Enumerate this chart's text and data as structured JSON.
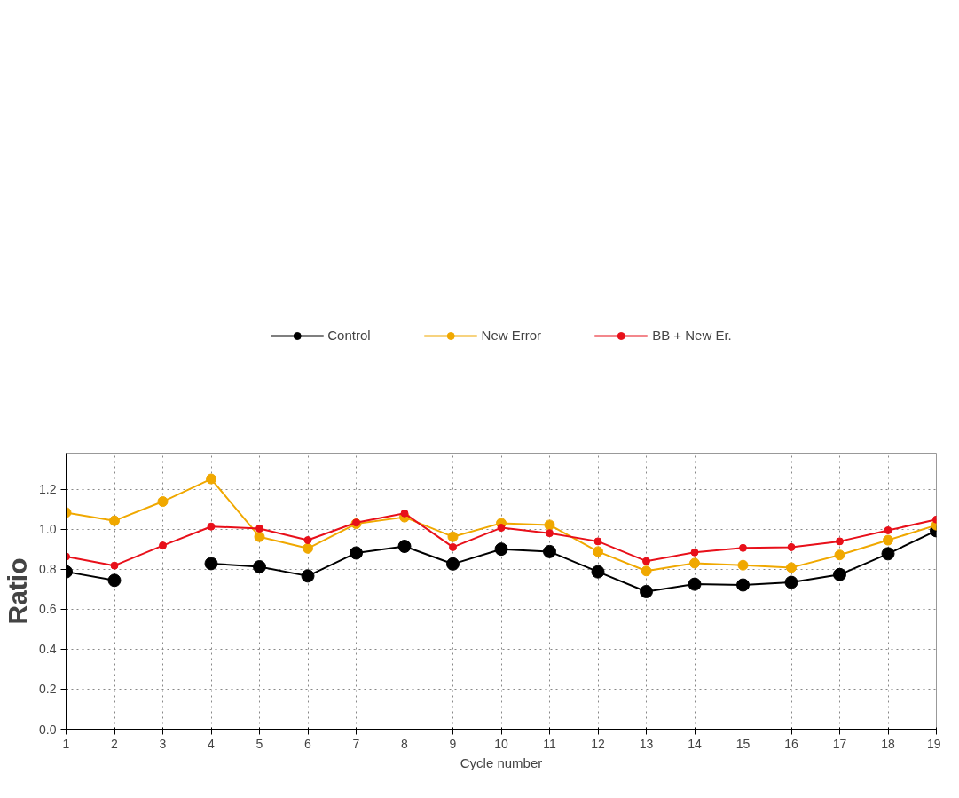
{
  "chart_data": {
    "type": "line",
    "xlabel": "Cycle number",
    "ylabel": "Ratio",
    "x": [
      1,
      2,
      3,
      4,
      5,
      6,
      7,
      8,
      9,
      10,
      11,
      12,
      13,
      14,
      15,
      16,
      17,
      18,
      19
    ],
    "series": [
      {
        "name": "Control",
        "color": "#000000",
        "values": [
          0.787,
          0.744,
          null,
          0.828,
          0.812,
          0.766,
          0.881,
          0.914,
          0.826,
          0.9,
          0.888,
          0.787,
          0.688,
          0.725,
          0.721,
          0.734,
          0.773,
          0.877,
          0.992
        ]
      },
      {
        "name": "New Error",
        "color": "#f0a800",
        "values": [
          1.083,
          1.042,
          1.138,
          1.251,
          0.962,
          0.904,
          1.027,
          1.06,
          0.962,
          1.03,
          1.021,
          0.888,
          0.791,
          0.83,
          0.82,
          0.808,
          0.871,
          0.945,
          1.02
        ]
      },
      {
        "name": "BB + New Er.",
        "color": "#e8101a",
        "values": [
          0.863,
          0.818,
          0.918,
          1.013,
          1.003,
          0.945,
          1.033,
          1.079,
          0.91,
          1.007,
          0.98,
          0.939,
          0.84,
          0.884,
          0.906,
          0.91,
          0.939,
          0.994,
          1.048
        ]
      }
    ],
    "xlim": [
      1,
      19
    ],
    "xticks": [
      1,
      2,
      3,
      4,
      5,
      6,
      7,
      8,
      9,
      10,
      11,
      12,
      13,
      14,
      15,
      16,
      17,
      18,
      19
    ],
    "ylim": [
      0,
      1.38
    ],
    "yticks": [
      {
        "value": 0,
        "label": "0.0"
      },
      0.2,
      0.4,
      0.6,
      0.8,
      {
        "value": 1,
        "label": "1.0"
      },
      1.2
    ],
    "grid": true,
    "legend": "top",
    "marker": "circle",
    "line_style": "solid"
  }
}
